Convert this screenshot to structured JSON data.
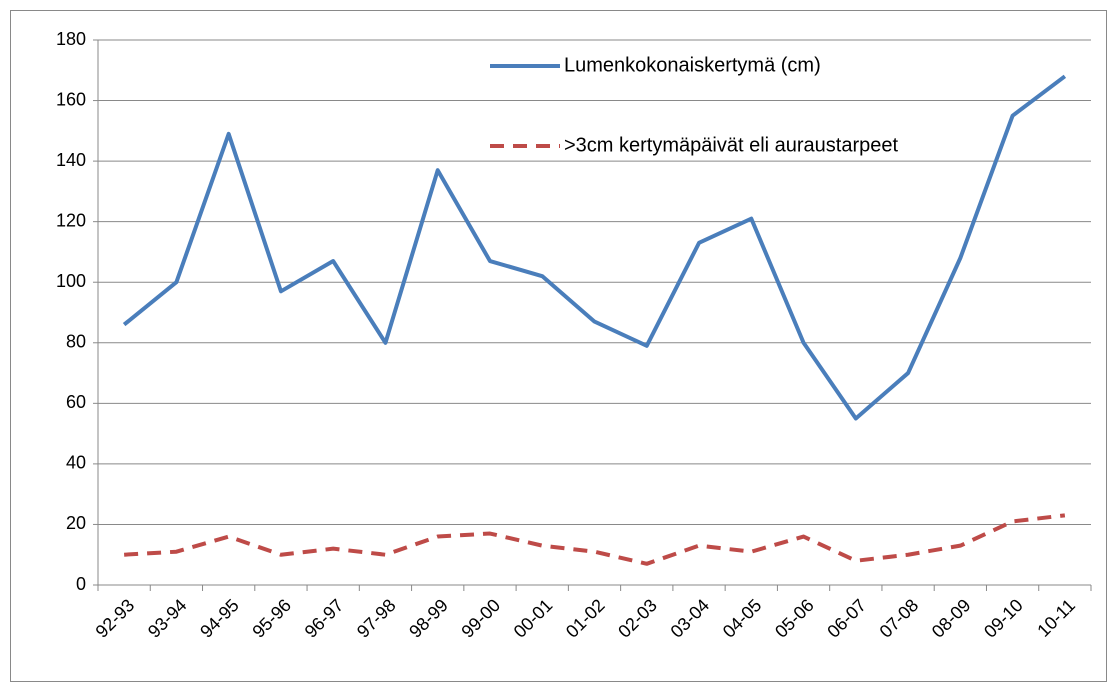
{
  "chart_data": {
    "type": "line",
    "categories": [
      "92-93",
      "93-94",
      "94-95",
      "95-96",
      "96-97",
      "97-98",
      "98-99",
      "99-00",
      "00-01",
      "01-02",
      "02-03",
      "03-04",
      "04-05",
      "05-06",
      "06-07",
      "07-08",
      "08-09",
      "09-10",
      "10-11"
    ],
    "series": [
      {
        "name": "Lumenkokonaiskertymä (cm)",
        "color": "#4a7ebb",
        "dashed": false,
        "values": [
          86,
          100,
          149,
          97,
          107,
          80,
          137,
          107,
          102,
          87,
          79,
          113,
          121,
          80,
          55,
          70,
          108,
          155,
          168
        ]
      },
      {
        "name": ">3cm kertymäpäivät eli auraustarpeet",
        "color": "#be4b48",
        "dashed": true,
        "values": [
          10,
          11,
          16,
          10,
          12,
          10,
          16,
          17,
          13,
          11,
          7,
          13,
          11,
          16,
          8,
          10,
          13,
          21,
          23
        ]
      }
    ],
    "ylim": [
      0,
      180
    ],
    "yticks": [
      0,
      20,
      40,
      60,
      80,
      100,
      120,
      140,
      160,
      180
    ],
    "grid": true,
    "legend": "top-right"
  }
}
